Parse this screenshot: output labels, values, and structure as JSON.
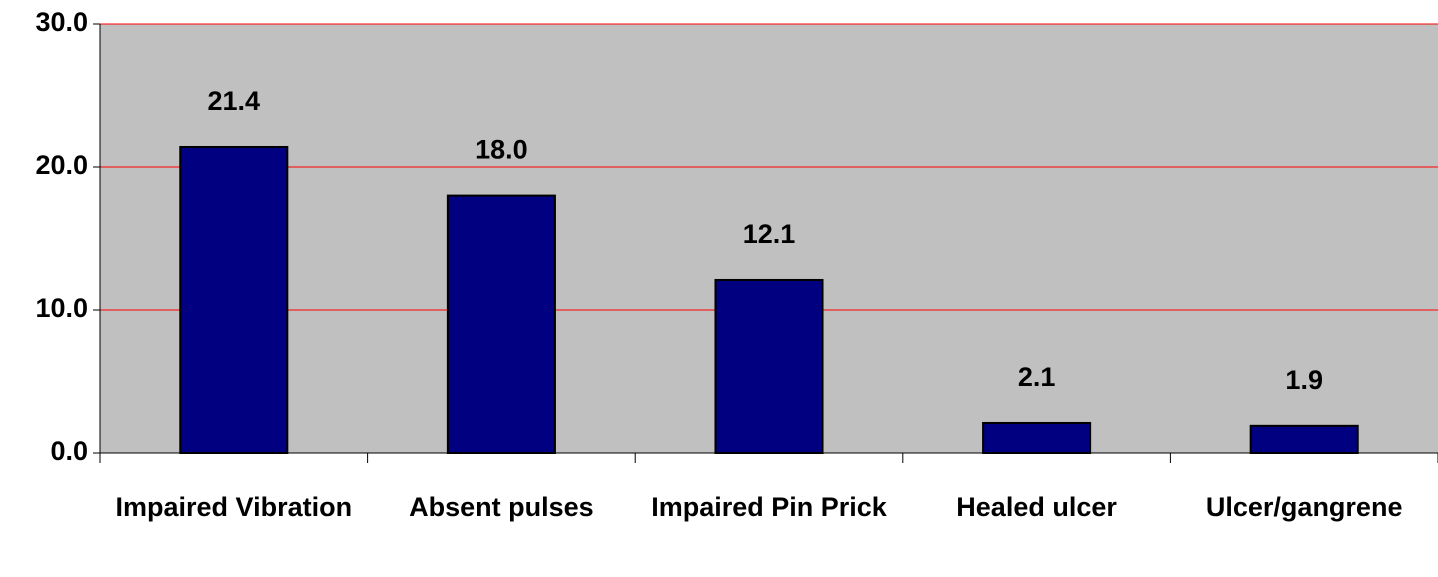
{
  "chart_data": {
    "type": "bar",
    "categories": [
      "Impaired Vibration",
      "Absent pulses",
      "Impaired Pin Prick",
      "Healed ulcer",
      "Ulcer/gangrene"
    ],
    "values": [
      21.4,
      18.0,
      12.1,
      2.1,
      1.9
    ],
    "value_labels": [
      "21.4",
      "18.0",
      "12.1",
      "2.1",
      "1.9"
    ],
    "color": "#000080",
    "ylim": [
      0,
      30
    ],
    "yticks": [
      {
        "value": 0,
        "label": "0.0"
      },
      {
        "value": 10,
        "label": "10.0"
      },
      {
        "value": 20,
        "label": "20.0"
      },
      {
        "value": 30,
        "label": "30.0"
      }
    ],
    "grid": true
  }
}
